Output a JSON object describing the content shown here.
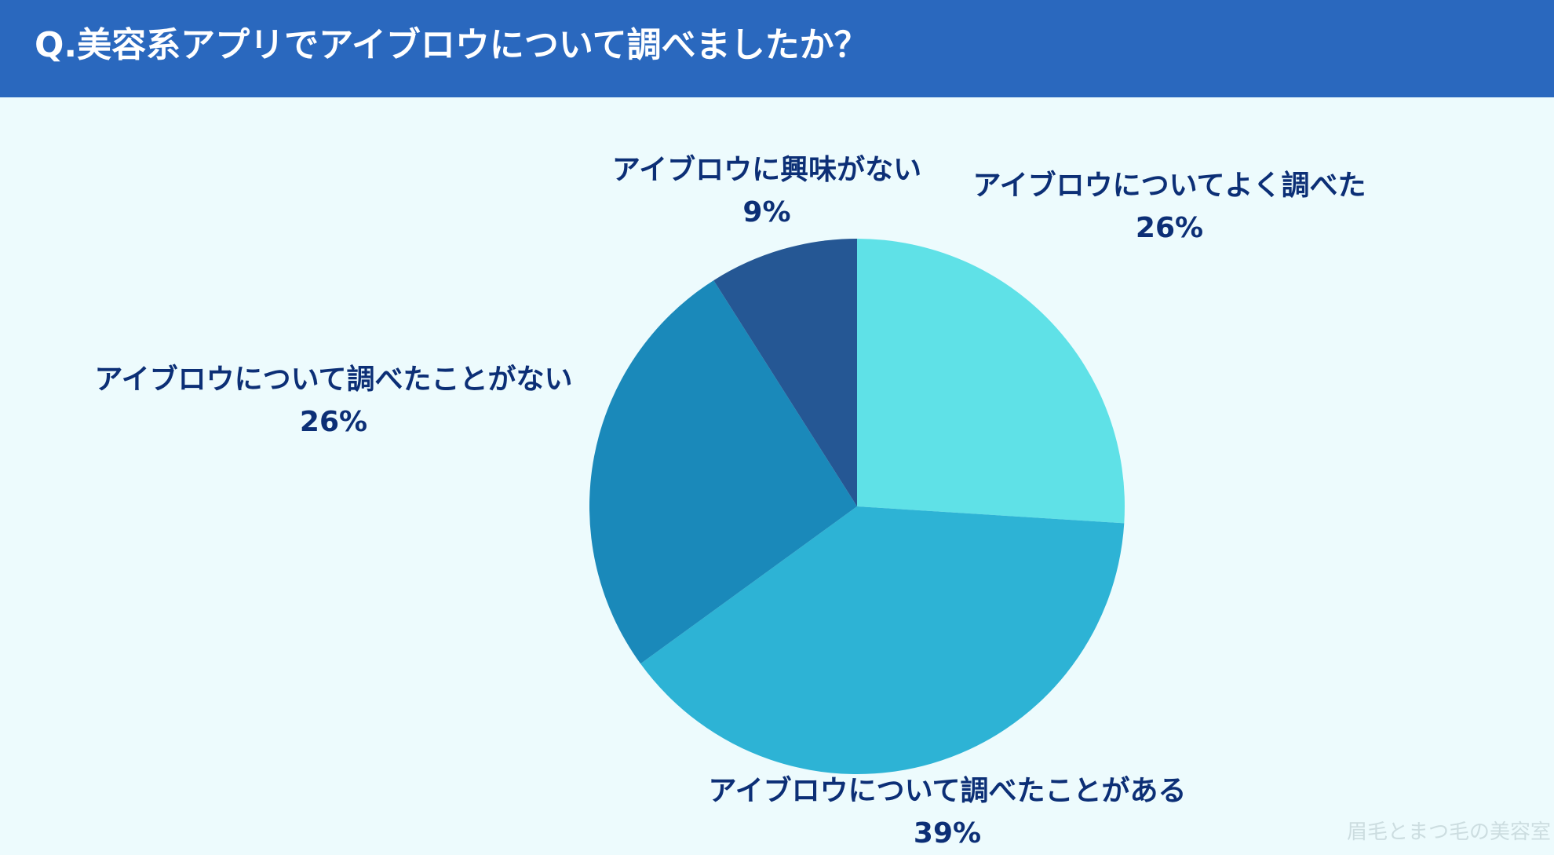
{
  "header": {
    "title": "Q.美容系アプリでアイブロウについて調べましたか？"
  },
  "chart_data": {
    "type": "pie",
    "title": "",
    "slices": [
      {
        "label": "アイブロウについてよく調べた",
        "value": 26,
        "value_label": "26%",
        "color": "#5fe1e7"
      },
      {
        "label": "アイブロウについて調べたことがある",
        "value": 39,
        "value_label": "39%",
        "color": "#2db3d5"
      },
      {
        "label": "アイブロウについて調べたことがない",
        "value": 26,
        "value_label": "26%",
        "color": "#1a89ba"
      },
      {
        "label": "アイブロウに興味がない",
        "value": 9,
        "value_label": "9%",
        "color": "#255794"
      }
    ],
    "start_angle": "12 o'clock",
    "direction": "clockwise",
    "legend": "none"
  },
  "watermark": "眉毛とまつ毛の美容室"
}
